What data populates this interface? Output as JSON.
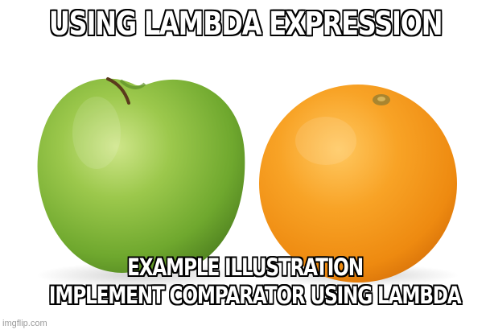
{
  "meme": {
    "top_text": "USING LAMBDA EXPRESSION",
    "bottom_text_line1": "EXAMPLE ILLUSTRATION",
    "bottom_text_line2": "IMPLEMENT COMPARATOR USING LAMBDA",
    "watermark": "imgflip.com"
  },
  "image": {
    "left_object": "green-apple",
    "right_object": "orange",
    "colors": {
      "apple": "#7fb83a",
      "orange": "#f39418",
      "background": "#ffffff"
    }
  }
}
